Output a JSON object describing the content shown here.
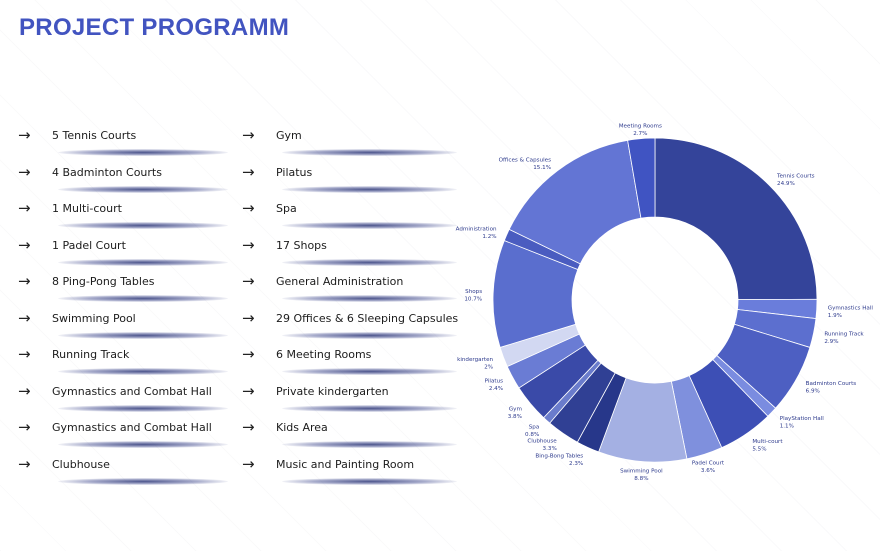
{
  "title": "PROJECT PROGRAMM",
  "arrow_glyph": "→",
  "program": {
    "left": [
      "5 Tennis Courts",
      "4 Badminton Courts",
      "1 Multi-court",
      "1 Padel Court",
      "8 Ping-Pong Tables",
      "Swimming Pool",
      "Running Track",
      "Gymnastics and Combat Hall",
      "Gymnastics and Combat Hall",
      "Clubhouse"
    ],
    "right": [
      "Gym",
      "Pilatus",
      "Spa",
      "17 Shops",
      "General Administration",
      "29 Offices & 6 Sleeping Capsules",
      "6 Meeting Rooms",
      "Private kindergarten",
      "Kids Area",
      "Music and Painting Room"
    ]
  },
  "chart_data": {
    "type": "pie",
    "hole": true,
    "title": "",
    "slices": [
      {
        "label": "Tennis Courts",
        "value": 24.9,
        "value_label": "24.9%",
        "color": "#34449a"
      },
      {
        "label": "Gymnastics Hall",
        "value": 1.9,
        "value_label": "1.9%",
        "color": "#6a7ddb"
      },
      {
        "label": "Running Track",
        "value": 2.9,
        "value_label": "2.9%",
        "color": "#5c6fcf"
      },
      {
        "label": "Badminton Courts",
        "value": 6.9,
        "value_label": "6.9%",
        "color": "#4d5fc2"
      },
      {
        "label": "PlayStation Hall",
        "value": 1.1,
        "value_label": "1.1%",
        "color": "#7a8ce0"
      },
      {
        "label": "Multi-court",
        "value": 5.5,
        "value_label": "5.5%",
        "color": "#3d4fb5"
      },
      {
        "label": "Padel Court",
        "value": 3.6,
        "value_label": "3.6%",
        "color": "#7f90dd"
      },
      {
        "label": "Swimming Pool",
        "value": 8.8,
        "value_label": "8.8%",
        "color": "#a4b0e3"
      },
      {
        "label": "Bing-Bong Tables",
        "value": 2.3,
        "value_label": "2.3%",
        "color": "#27378a"
      },
      {
        "label": "Clubhouse",
        "value": 3.3,
        "value_label": "3.3%",
        "color": "#304094"
      },
      {
        "label": "Spa",
        "value": 0.8,
        "value_label": "0.8%",
        "color": "#6a7ccc"
      },
      {
        "label": "Gym",
        "value": 3.8,
        "value_label": "3.8%",
        "color": "#3a4aa8"
      },
      {
        "label": "Pilatus",
        "value": 2.4,
        "value_label": "2.4%",
        "color": "#6a7cd4"
      },
      {
        "label": "kindergarten",
        "value": 2.0,
        "value_label": "2%",
        "color": "#d2d8f2"
      },
      {
        "label": "Shops",
        "value": 10.7,
        "value_label": "10.7%",
        "color": "#5a6ece"
      },
      {
        "label": "Administration",
        "value": 1.2,
        "value_label": "1.2%",
        "color": "#4a5cc0"
      },
      {
        "label": "Offices & Capsules",
        "value": 15.1,
        "value_label": "15.1%",
        "color": "#6375d4"
      },
      {
        "label": "Meeting Rooms",
        "value": 2.7,
        "value_label": "2.7%",
        "color": "#4054c2"
      }
    ]
  }
}
